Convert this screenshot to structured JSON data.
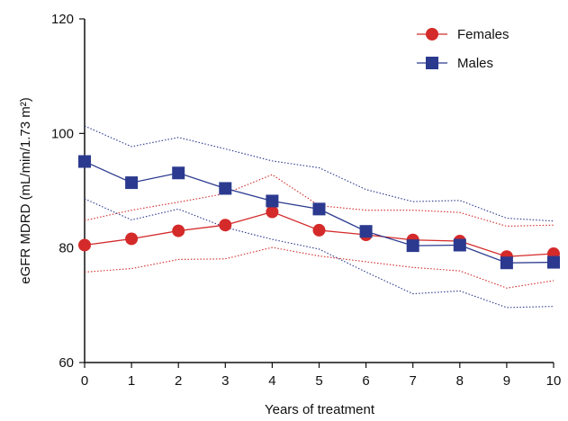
{
  "chart_data": {
    "type": "line",
    "xlabel": "Years of treatment",
    "ylabel": "eGFR MDRD (mL/min/1.73 m²)",
    "xlim": [
      0,
      10
    ],
    "ylim": [
      60,
      120
    ],
    "x": [
      0,
      1,
      2,
      3,
      4,
      5,
      6,
      7,
      8,
      9,
      10
    ],
    "x_ticks": [
      0,
      1,
      2,
      3,
      4,
      5,
      6,
      7,
      8,
      9,
      10
    ],
    "y_ticks": [
      60,
      80,
      100,
      120
    ],
    "grid": false,
    "legend_position": "top-right",
    "series": [
      {
        "name": "Females",
        "color": "#d42a2a",
        "marker": "circle",
        "values": [
          80.5,
          81.6,
          83.0,
          84.0,
          86.3,
          83.1,
          82.3,
          81.4,
          81.2,
          78.5,
          79.0
        ],
        "upper": [
          84.8,
          86.6,
          88.0,
          89.5,
          92.8,
          87.4,
          86.6,
          86.6,
          86.2,
          83.8,
          84.0
        ],
        "lower": [
          75.8,
          76.4,
          78.0,
          78.1,
          80.1,
          78.6,
          77.6,
          76.6,
          76.0,
          73.0,
          74.3
        ]
      },
      {
        "name": "Males",
        "color": "#2b3a8f",
        "marker": "square",
        "values": [
          95.1,
          91.4,
          93.1,
          90.4,
          88.2,
          86.8,
          82.9,
          80.4,
          80.5,
          77.4,
          77.5
        ],
        "upper": [
          101.3,
          97.7,
          99.3,
          97.3,
          95.2,
          94.0,
          90.2,
          88.1,
          88.3,
          85.2,
          84.7
        ],
        "lower": [
          88.6,
          84.9,
          86.8,
          83.6,
          81.5,
          79.8,
          75.8,
          72.0,
          72.5,
          69.6,
          69.8
        ]
      }
    ]
  }
}
